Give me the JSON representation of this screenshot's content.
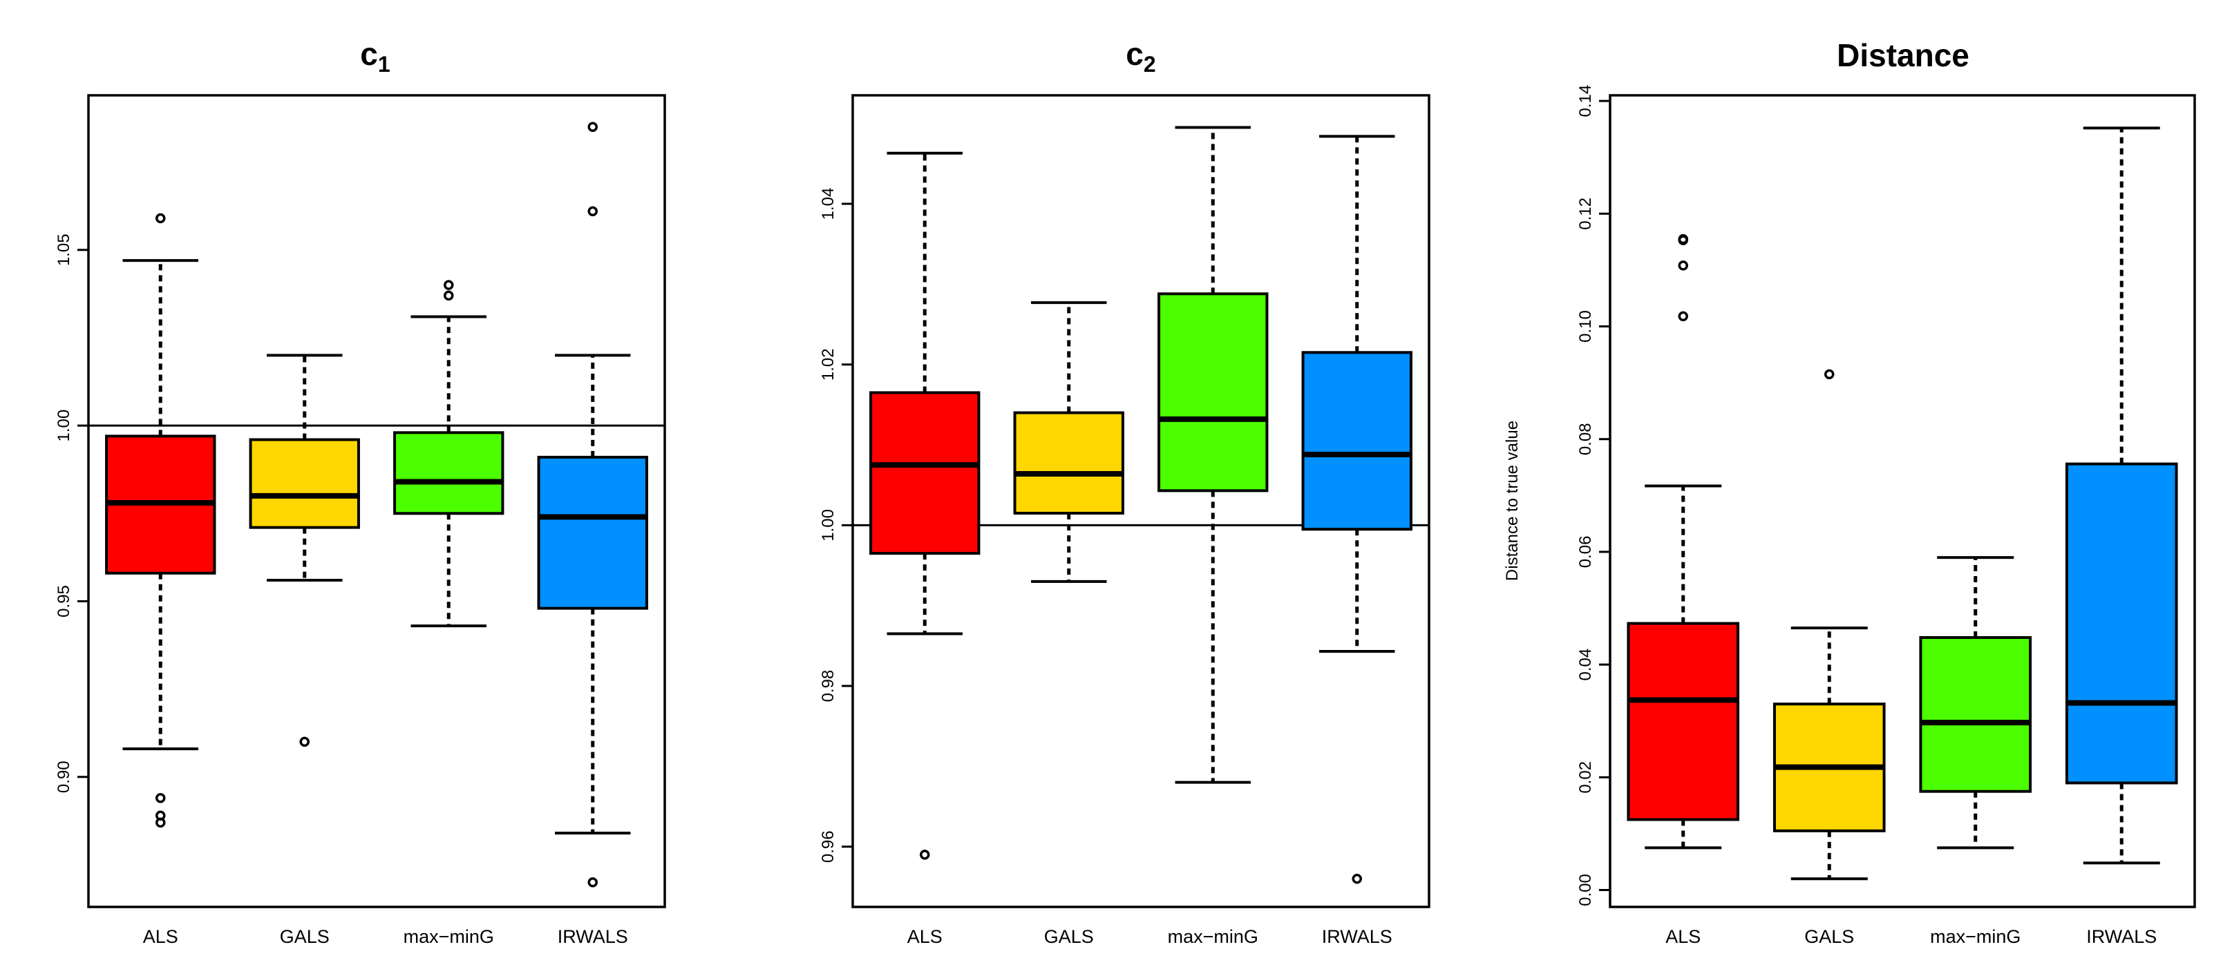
{
  "chart_data": [
    {
      "type": "box",
      "title_main": "c",
      "title_sub": "1",
      "ylabel": "",
      "ylim": [
        0.863,
        1.094
      ],
      "yticks": [
        0.9,
        0.95,
        1.0,
        1.05
      ],
      "ytick_labels": [
        "0.90",
        "0.95",
        "1.00",
        "1.05"
      ],
      "reference_line": 1.0,
      "categories": [
        "ALS",
        "GALS",
        "max−minG",
        "IRWALS"
      ],
      "colors": [
        "#FF0000",
        "#FFD700",
        "#4CFF00",
        "#0090FF"
      ],
      "boxes": [
        {
          "whisker_low": 0.908,
          "q1": 0.958,
          "median": 0.978,
          "q3": 0.997,
          "whisker_high": 1.047,
          "outliers": [
            0.894,
            0.889,
            0.887,
            1.059
          ]
        },
        {
          "whisker_low": 0.956,
          "q1": 0.971,
          "median": 0.98,
          "q3": 0.996,
          "whisker_high": 1.02,
          "outliers": [
            0.91
          ]
        },
        {
          "whisker_low": 0.943,
          "q1": 0.975,
          "median": 0.984,
          "q3": 0.998,
          "whisker_high": 1.031,
          "outliers": [
            1.037,
            1.04
          ]
        },
        {
          "whisker_low": 0.884,
          "q1": 0.948,
          "median": 0.974,
          "q3": 0.991,
          "whisker_high": 1.02,
          "outliers": [
            0.87,
            1.061,
            1.085
          ]
        }
      ]
    },
    {
      "type": "box",
      "title_main": "c",
      "title_sub": "2",
      "ylabel": "",
      "ylim": [
        0.9525,
        1.0535
      ],
      "yticks": [
        0.96,
        0.98,
        1.0,
        1.02,
        1.04
      ],
      "ytick_labels": [
        "0.96",
        "0.98",
        "1.00",
        "1.02",
        "1.04"
      ],
      "reference_line": 1.0,
      "categories": [
        "ALS",
        "GALS",
        "max−minG",
        "IRWALS"
      ],
      "colors": [
        "#FF0000",
        "#FFD700",
        "#4CFF00",
        "#0090FF"
      ],
      "boxes": [
        {
          "whisker_low": 0.9865,
          "q1": 0.9965,
          "median": 1.0075,
          "q3": 1.0165,
          "whisker_high": 1.0463,
          "outliers": [
            0.959
          ]
        },
        {
          "whisker_low": 0.993,
          "q1": 1.0015,
          "median": 1.0064,
          "q3": 1.014,
          "whisker_high": 1.0277,
          "outliers": []
        },
        {
          "whisker_low": 0.968,
          "q1": 1.0043,
          "median": 1.0132,
          "q3": 1.0288,
          "whisker_high": 1.0495,
          "outliers": []
        },
        {
          "whisker_low": 0.9843,
          "q1": 0.9995,
          "median": 1.0088,
          "q3": 1.0215,
          "whisker_high": 1.0484,
          "outliers": [
            0.956
          ]
        }
      ]
    },
    {
      "type": "box",
      "title_main": "Distance",
      "title_sub": "",
      "ylabel": "Distance to true value",
      "ylim": [
        -0.003,
        0.141
      ],
      "yticks": [
        0.0,
        0.02,
        0.04,
        0.06,
        0.08,
        0.1,
        0.12,
        0.14
      ],
      "ytick_labels": [
        "0.00",
        "0.02",
        "0.04",
        "0.06",
        "0.08",
        "0.10",
        "0.12",
        "0.14"
      ],
      "reference_line": null,
      "categories": [
        "ALS",
        "GALS",
        "max−minG",
        "IRWALS"
      ],
      "colors": [
        "#FF0000",
        "#FFD700",
        "#4CFF00",
        "#0090FF"
      ],
      "boxes": [
        {
          "whisker_low": 0.0075,
          "q1": 0.0125,
          "median": 0.0337,
          "q3": 0.0473,
          "whisker_high": 0.0717,
          "outliers": [
            0.1018,
            0.1108,
            0.1153,
            0.1155
          ]
        },
        {
          "whisker_low": 0.002,
          "q1": 0.0105,
          "median": 0.0218,
          "q3": 0.033,
          "whisker_high": 0.0465,
          "outliers": [
            0.0915
          ]
        },
        {
          "whisker_low": 0.0075,
          "q1": 0.0175,
          "median": 0.0297,
          "q3": 0.0448,
          "whisker_high": 0.059,
          "outliers": []
        },
        {
          "whisker_low": 0.0048,
          "q1": 0.019,
          "median": 0.0332,
          "q3": 0.0756,
          "whisker_high": 0.1352,
          "outliers": []
        }
      ]
    }
  ]
}
